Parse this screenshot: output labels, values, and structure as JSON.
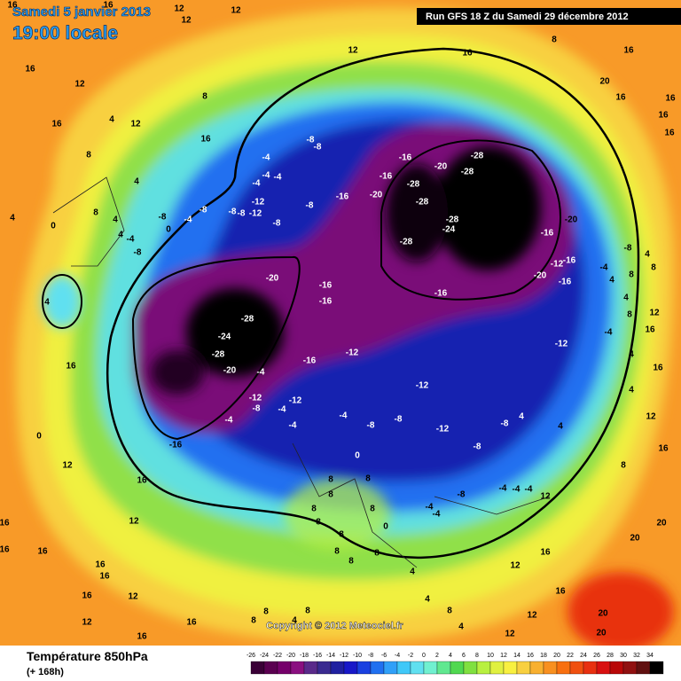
{
  "header": {
    "date": "Samedi 5 janvier 2013",
    "time": "19:00 locale",
    "run": "Run GFS 18 Z du Samedi 29 décembre 2012"
  },
  "footer": {
    "title": "Température 850hPa",
    "lead": "(+ 168h)",
    "copyright": "Copyright © 2012 Meteociel.fr"
  },
  "legend": {
    "ticks": [
      -26,
      -24,
      -22,
      -20,
      -18,
      -16,
      -14,
      -12,
      -10,
      -8,
      -6,
      -4,
      -2,
      0,
      2,
      4,
      6,
      8,
      10,
      12,
      14,
      16,
      18,
      20,
      22,
      24,
      26,
      28,
      30,
      32,
      34
    ],
    "colors": [
      "#3a0036",
      "#5a0050",
      "#75006a",
      "#8a1080",
      "#5a2a8a",
      "#3a2a90",
      "#2020a0",
      "#1818c8",
      "#1a40e0",
      "#2070f0",
      "#30a0f8",
      "#40c8f8",
      "#60e0f0",
      "#70f0d0",
      "#60e890",
      "#50d850",
      "#80e040",
      "#b8f040",
      "#e0f040",
      "#f8f040",
      "#f8d040",
      "#f8b030",
      "#f89020",
      "#f87010",
      "#f05010",
      "#e83010",
      "#d81010",
      "#b80808",
      "#901010",
      "#601010",
      "#000000"
    ]
  },
  "contour_labels": [
    -28,
    -28,
    -28,
    -28,
    -28,
    -28,
    -28,
    -28,
    -24,
    -24,
    -16,
    -20,
    -20,
    -16,
    -16,
    -8,
    -8,
    -8,
    -4,
    -4,
    -4,
    -4,
    -8,
    -4,
    -8,
    -8,
    -8,
    -12,
    -12,
    -8,
    -8,
    0,
    -20,
    -16,
    -16,
    -16,
    -20,
    -16,
    -12,
    -16,
    -20,
    -16,
    -12,
    -16,
    -12,
    -12,
    -20,
    -4,
    -12,
    -8,
    -4,
    -12,
    -4,
    -4,
    -8,
    -8,
    -12,
    -8,
    -8,
    -4,
    -16,
    -8,
    -4,
    -4,
    -4,
    -4,
    -4,
    0,
    8,
    8,
    8,
    8,
    8,
    8,
    8,
    0,
    4,
    4,
    8,
    8,
    8,
    8,
    8,
    16,
    16,
    12,
    12,
    12,
    16,
    12,
    16,
    12,
    4,
    4,
    8,
    8,
    4,
    4,
    -4,
    0,
    4,
    4,
    16,
    0,
    12,
    16,
    12,
    16,
    16,
    16,
    16,
    16,
    16,
    12,
    12,
    16,
    16,
    8,
    4,
    8,
    16,
    20,
    16,
    12,
    8,
    16,
    16,
    16,
    16,
    4,
    8,
    8,
    4,
    4,
    -4,
    -8,
    -4,
    8,
    4,
    12,
    16,
    4,
    16,
    12,
    16,
    8,
    4,
    4,
    20,
    20,
    20,
    20,
    16,
    16,
    12,
    12,
    4,
    8,
    12,
    12,
    16,
    16
  ]
}
